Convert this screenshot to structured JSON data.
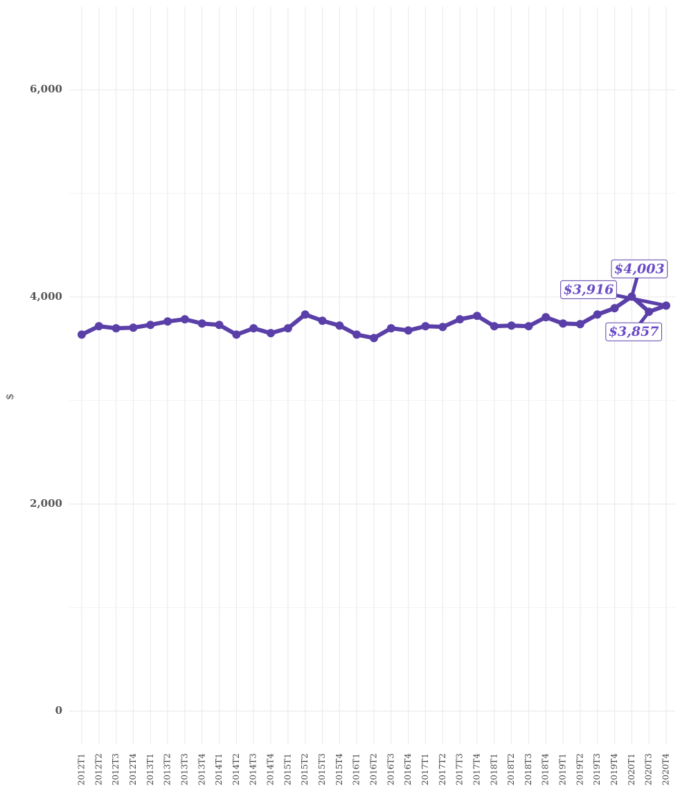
{
  "chart_data": {
    "type": "line",
    "y_label": "$",
    "categories": [
      "2012T1",
      "2012T2",
      "2012T3",
      "2012T4",
      "2013T1",
      "2013T2",
      "2013T3",
      "2013T4",
      "2014T1",
      "2014T2",
      "2014T3",
      "2014T4",
      "2015T1",
      "2015T2",
      "2015T3",
      "2015T4",
      "2016T1",
      "2016T2",
      "2016T3",
      "2016T4",
      "2017T1",
      "2017T2",
      "2017T3",
      "2017T4",
      "2018T1",
      "2018T2",
      "2018T3",
      "2018T4",
      "2019T1",
      "2019T2",
      "2019T3",
      "2019T4",
      "2020T1",
      "2020T3",
      "2020T4"
    ],
    "values": [
      3636,
      3717,
      3697,
      3703,
      3730,
      3763,
      3784,
      3743,
      3730,
      3636,
      3697,
      3650,
      3697,
      3830,
      3770,
      3723,
      3636,
      3603,
      3697,
      3676,
      3717,
      3710,
      3784,
      3817,
      3717,
      3723,
      3717,
      3804,
      3743,
      3737,
      3830,
      3891,
      4003,
      3857,
      3916
    ],
    "value_labels": [
      null,
      null,
      null,
      null,
      null,
      null,
      null,
      null,
      null,
      null,
      null,
      null,
      null,
      null,
      null,
      null,
      null,
      null,
      null,
      null,
      null,
      null,
      null,
      null,
      null,
      null,
      null,
      null,
      null,
      null,
      null,
      null,
      "$4,003",
      "$3,857",
      "$3,916"
    ],
    "color": "#5a3fa8",
    "ylim": [
      -320,
      6800
    ],
    "yticks": [
      0,
      {
        "value": 2000,
        "label": "2,000"
      },
      {
        "value": 4000,
        "label": "4,000"
      },
      {
        "value": 6000,
        "label": "6,000"
      }
    ],
    "minor_yticks": [
      1000,
      3000,
      5000
    ],
    "grid": true
  }
}
